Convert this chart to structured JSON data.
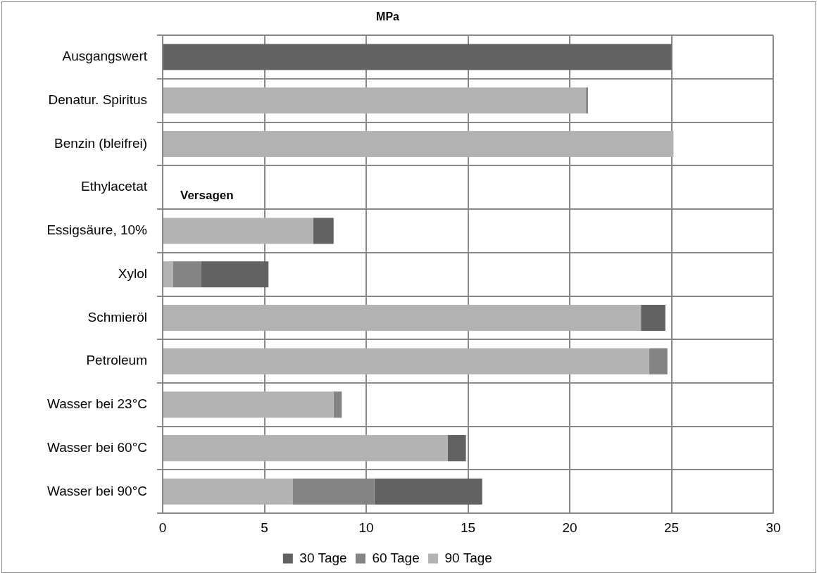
{
  "chart_data": {
    "type": "bar",
    "orientation": "horizontal",
    "stacked": true,
    "title": "MPa",
    "categories": [
      "Ausgangswert",
      "Denatur. Spiritus",
      "Benzin (bleifrei)",
      "Ethylacetat",
      "Essigsäure, 10%",
      "Xylol",
      "Schmieröl",
      "Petroleum",
      "Wasser bei 23°C",
      "Wasser bei 60°C",
      "Wasser bei 90°C"
    ],
    "series": [
      {
        "name": "90 Tage",
        "color": "#b3b3b3",
        "values": [
          null,
          20.8,
          25.1,
          null,
          7.4,
          0.5,
          23.5,
          23.9,
          8.4,
          14.0,
          6.4
        ]
      },
      {
        "name": "60 Tage",
        "color": "#848484",
        "values": [
          null,
          0.1,
          null,
          null,
          null,
          1.4,
          null,
          0.9,
          0.4,
          null,
          4.0
        ]
      },
      {
        "name": "30 Tage",
        "color": "#626262",
        "values": [
          25.0,
          null,
          null,
          null,
          1.0,
          3.3,
          1.2,
          null,
          null,
          0.9,
          5.3
        ]
      }
    ],
    "xlim": [
      0,
      30
    ],
    "xticks": [
      0,
      5,
      10,
      15,
      20,
      25,
      30
    ],
    "grid": true,
    "legend": "bottom",
    "annotations": [
      "Versagen"
    ]
  }
}
